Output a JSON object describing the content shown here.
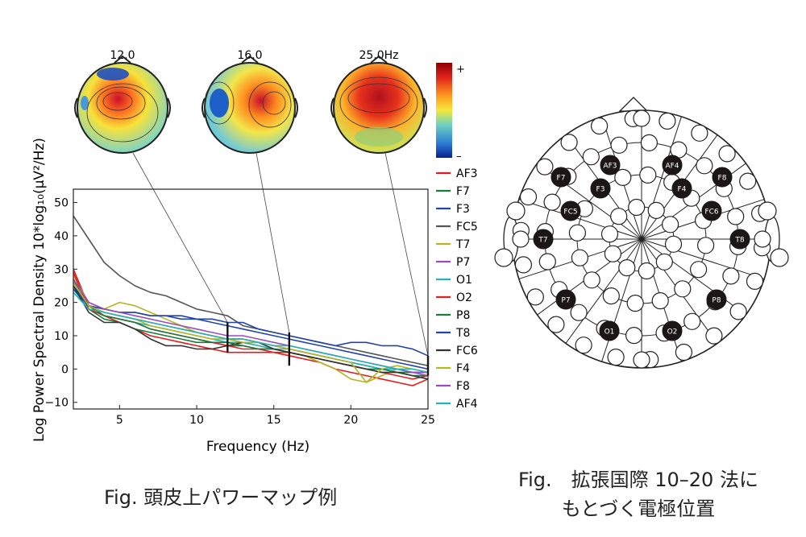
{
  "chart_data": {
    "type": "line",
    "xlabel": "Frequency (Hz)",
    "ylabel": "Log Power Spectral Density 10*log₁₀(µV²/Hz)",
    "xlim": [
      2,
      25
    ],
    "ylim": [
      -12,
      54
    ],
    "xticks": [
      "5",
      "10",
      "15",
      "20",
      "25"
    ],
    "yticks": [
      "50",
      "40",
      "30",
      "20",
      "10",
      "0",
      "−10"
    ],
    "grid": false,
    "legend_position": "right",
    "x": [
      2,
      3,
      4,
      5,
      6,
      7,
      8,
      9,
      10,
      11,
      12,
      13,
      14,
      15,
      16,
      17,
      18,
      19,
      20,
      21,
      22,
      23,
      24,
      25
    ],
    "series": [
      {
        "name": "AF3",
        "color": "#e41a1c",
        "values": [
          30,
          19,
          16,
          14,
          12,
          10,
          9,
          8,
          7,
          6,
          5,
          5,
          5,
          5,
          4,
          3,
          2,
          0,
          -1,
          -2,
          -3,
          -4,
          -5,
          -3
        ]
      },
      {
        "name": "F7",
        "color": "#1a7a3a",
        "values": [
          27,
          18,
          15,
          14,
          12,
          11,
          10,
          9,
          8,
          8,
          7,
          7,
          6,
          6,
          5,
          4,
          3,
          2,
          1,
          0,
          -1,
          -1,
          -2,
          -2
        ]
      },
      {
        "name": "F3",
        "color": "#2244aa",
        "values": [
          25,
          19,
          18,
          17,
          17,
          16,
          16,
          15,
          15,
          14,
          13,
          12,
          11,
          10,
          9,
          8,
          7,
          6,
          5,
          4,
          3,
          2,
          1,
          0
        ]
      },
      {
        "name": "FC5",
        "color": "#555555",
        "values": [
          46,
          39,
          32,
          28,
          25,
          23,
          22,
          20,
          18,
          17,
          16,
          13,
          12,
          11,
          10,
          9,
          8,
          7,
          6,
          5,
          4,
          3,
          2,
          1
        ]
      },
      {
        "name": "T7",
        "color": "#b5b522",
        "values": [
          28,
          20,
          18,
          20,
          19,
          17,
          15,
          13,
          11,
          10,
          9,
          8,
          7,
          6,
          5,
          4,
          2,
          0,
          -3,
          -4,
          -2,
          0,
          -1,
          -1
        ]
      },
      {
        "name": "P7",
        "color": "#9b4bc2",
        "values": [
          26,
          19,
          17,
          16,
          15,
          14,
          13,
          12,
          11,
          10,
          9,
          9,
          8,
          7,
          6,
          5,
          4,
          3,
          2,
          1,
          0,
          -1,
          -1,
          -2
        ]
      },
      {
        "name": "O1",
        "color": "#22b3b3",
        "values": [
          24,
          18,
          16,
          15,
          14,
          13,
          12,
          11,
          10,
          9,
          8,
          8,
          7,
          6,
          6,
          5,
          4,
          3,
          2,
          1,
          0,
          0,
          -1,
          -1
        ]
      },
      {
        "name": "O2",
        "color": "#e02222",
        "values": [
          29,
          18,
          16,
          15,
          14,
          12,
          11,
          10,
          9,
          8,
          7,
          6,
          6,
          5,
          5,
          4,
          3,
          2,
          1,
          0,
          -1,
          -2,
          -3,
          -2
        ]
      },
      {
        "name": "P8",
        "color": "#1a7a3a",
        "values": [
          26,
          19,
          16,
          15,
          14,
          12,
          11,
          10,
          9,
          8,
          8,
          7,
          6,
          6,
          5,
          4,
          3,
          2,
          1,
          0,
          0,
          -1,
          -1,
          -1
        ]
      },
      {
        "name": "T8",
        "color": "#2244aa",
        "values": [
          24,
          19,
          18,
          17,
          17,
          16,
          16,
          16,
          15,
          15,
          14,
          14,
          12,
          11,
          10,
          9,
          8,
          7,
          8,
          8,
          7,
          7,
          6,
          4
        ]
      },
      {
        "name": "FC6",
        "color": "#333333",
        "values": [
          25,
          17,
          14,
          14,
          12,
          9,
          7,
          7,
          6,
          6,
          7,
          8,
          8,
          6,
          5,
          4,
          3,
          2,
          1,
          0,
          -1,
          -1,
          -2,
          -3
        ]
      },
      {
        "name": "F4",
        "color": "#b5b522",
        "values": [
          26,
          19,
          17,
          16,
          15,
          13,
          12,
          11,
          10,
          9,
          9,
          8,
          8,
          7,
          6,
          5,
          4,
          3,
          2,
          -4,
          0,
          1,
          0,
          -1
        ]
      },
      {
        "name": "F8",
        "color": "#9b4bc2",
        "values": [
          27,
          20,
          18,
          17,
          16,
          15,
          14,
          13,
          12,
          11,
          10,
          10,
          9,
          8,
          7,
          6,
          5,
          4,
          3,
          2,
          1,
          0,
          -1,
          -1
        ]
      },
      {
        "name": "AF4",
        "color": "#22b3b3",
        "values": [
          23,
          18,
          17,
          16,
          15,
          14,
          13,
          12,
          11,
          10,
          9,
          9,
          8,
          7,
          7,
          6,
          5,
          4,
          3,
          2,
          1,
          0,
          0,
          -1
        ]
      }
    ],
    "markers": [
      {
        "freq": 12,
        "ymin": 5,
        "ymax": 14
      },
      {
        "freq": 16,
        "ymin": 1,
        "ymax": 11
      },
      {
        "freq": 25,
        "ymin": -2,
        "ymax": 4
      }
    ]
  },
  "topomaps": {
    "labels": [
      "12.0",
      "16.0",
      "25.0Hz"
    ],
    "colorbar_plus": "+",
    "colorbar_minus": "–"
  },
  "electrode_map": {
    "labels": [
      "AF3",
      "AF4",
      "F7",
      "F3",
      "F4",
      "F8",
      "FC5",
      "FC6",
      "T7",
      "T8",
      "P7",
      "P8",
      "O1",
      "O2"
    ]
  },
  "captions": {
    "left": "Fig. 頭皮上パワーマップ例",
    "right_line1": "Fig.　拡張国際 10–20 法に",
    "right_line2": "もとづく電極位置"
  }
}
